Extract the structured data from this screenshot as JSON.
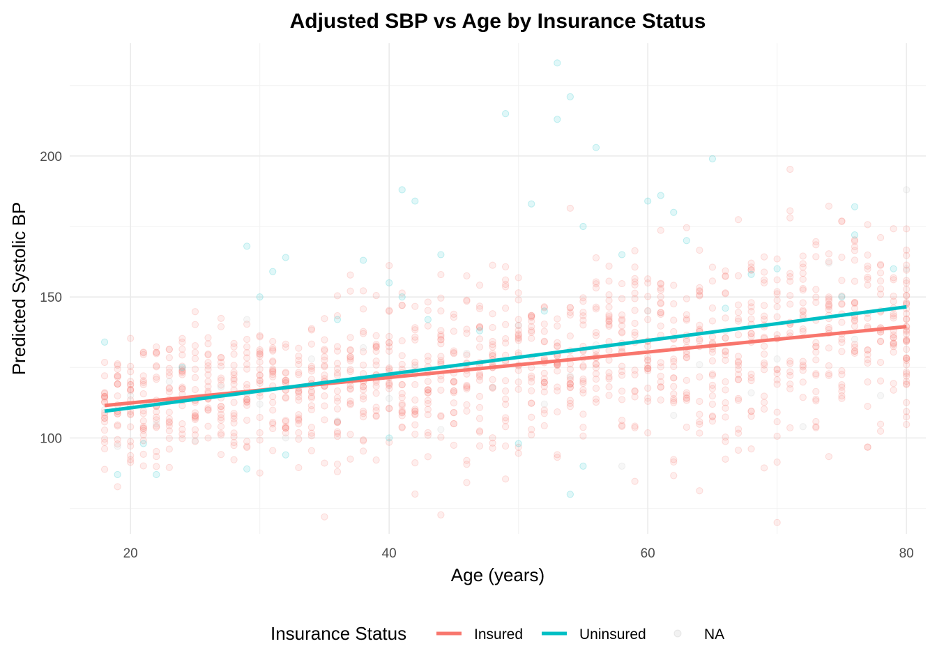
{
  "chart_data": {
    "type": "scatter",
    "title": "Adjusted SBP vs Age by Insurance Status",
    "xlabel": "Age (years)",
    "ylabel": "Predicted Systolic BP",
    "xlim": [
      15.3,
      81.5
    ],
    "ylim": [
      66,
      240
    ],
    "x_ticks": [
      20,
      40,
      60,
      80
    ],
    "x_tick_labels": [
      "20",
      "40",
      "60",
      "80"
    ],
    "y_ticks": [
      100,
      150,
      200
    ],
    "y_tick_labels": [
      "100",
      "150",
      "200"
    ],
    "grid": true,
    "legend": {
      "title": "Insurance Status",
      "position": "bottom",
      "entries": [
        {
          "label": "Insured",
          "kind": "line",
          "color": "#F8766D"
        },
        {
          "label": "Uninsured",
          "kind": "line",
          "color": "#00BFC4"
        },
        {
          "label": "NA",
          "kind": "point",
          "color": "#bdbdbd"
        }
      ]
    },
    "series": [
      {
        "name": "Insured",
        "color": "#F8766D",
        "trend": {
          "x": [
            18,
            80
          ],
          "y": [
            111.5,
            139.5
          ]
        },
        "points_summary": {
          "x_range": [
            18,
            80
          ],
          "center_y_at_x": [
            [
              18,
              111.5
            ],
            [
              80,
              139.5
            ]
          ],
          "spread_sd": 11
        }
      },
      {
        "name": "Uninsured",
        "color": "#00BFC4",
        "trend": {
          "x": [
            18,
            80
          ],
          "y": [
            109.5,
            146.5
          ]
        },
        "points": [
          [
            18,
            134
          ],
          [
            19,
            87
          ],
          [
            21,
            98
          ],
          [
            22,
            87
          ],
          [
            24,
            125
          ],
          [
            29,
            168
          ],
          [
            29,
            89
          ],
          [
            30,
            150
          ],
          [
            31,
            159
          ],
          [
            32,
            164
          ],
          [
            32,
            94
          ],
          [
            36,
            142
          ],
          [
            38,
            163
          ],
          [
            40,
            155
          ],
          [
            40,
            100
          ],
          [
            41,
            188
          ],
          [
            41,
            150
          ],
          [
            42,
            184
          ],
          [
            43,
            142
          ],
          [
            44,
            165
          ],
          [
            47,
            138
          ],
          [
            49,
            215
          ],
          [
            50,
            98
          ],
          [
            51,
            183
          ],
          [
            52,
            145
          ],
          [
            53,
            233
          ],
          [
            53,
            213
          ],
          [
            54,
            221
          ],
          [
            54,
            80
          ],
          [
            55,
            175
          ],
          [
            55,
            90
          ],
          [
            56,
            203
          ],
          [
            58,
            165
          ],
          [
            60,
            184
          ],
          [
            61,
            186
          ],
          [
            62,
            180
          ],
          [
            63,
            170
          ],
          [
            65,
            199
          ],
          [
            66,
            146
          ],
          [
            68,
            158
          ],
          [
            70,
            160
          ],
          [
            75,
            150
          ],
          [
            76,
            182
          ],
          [
            76,
            172
          ],
          [
            79,
            160
          ]
        ]
      },
      {
        "name": "NA",
        "color": "#bdbdbd",
        "points": [
          [
            18,
            110
          ],
          [
            19,
            97
          ],
          [
            20,
            115
          ],
          [
            22,
            105
          ],
          [
            23,
            120
          ],
          [
            25,
            99
          ],
          [
            27,
            118
          ],
          [
            29,
            142
          ],
          [
            30,
            112
          ],
          [
            32,
            100
          ],
          [
            34,
            128
          ],
          [
            36,
            106
          ],
          [
            38,
            132
          ],
          [
            40,
            114
          ],
          [
            42,
            125
          ],
          [
            44,
            103
          ],
          [
            46,
            130
          ],
          [
            48,
            118
          ],
          [
            50,
            140
          ],
          [
            52,
            112
          ],
          [
            54,
            122
          ],
          [
            56,
            133
          ],
          [
            58,
            90
          ],
          [
            60,
            145
          ],
          [
            62,
            108
          ],
          [
            64,
            126
          ],
          [
            66,
            138
          ],
          [
            68,
            116
          ],
          [
            70,
            128
          ],
          [
            72,
            104
          ],
          [
            74,
            162
          ],
          [
            76,
            135
          ],
          [
            78,
            115
          ],
          [
            80,
            188
          ],
          [
            80,
            160
          ]
        ]
      }
    ]
  }
}
